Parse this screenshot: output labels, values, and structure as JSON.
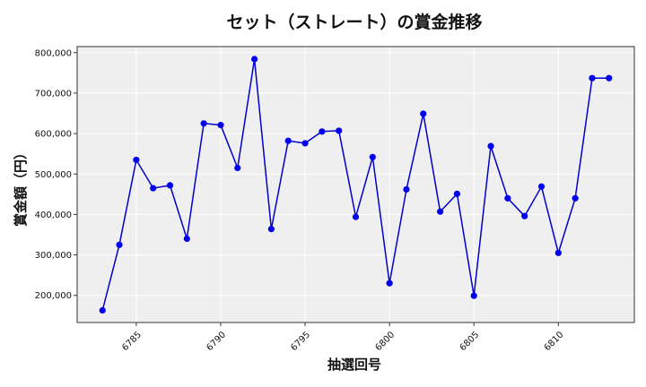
{
  "chart_data": {
    "type": "line",
    "title": "セット（ストレート）の賞金推移",
    "xlabel": "抽選回号",
    "ylabel": "賞金額（円）",
    "x": [
      6783,
      6784,
      6785,
      6786,
      6787,
      6788,
      6789,
      6790,
      6791,
      6792,
      6793,
      6794,
      6795,
      6796,
      6797,
      6798,
      6799,
      6800,
      6801,
      6802,
      6803,
      6804,
      6805,
      6806,
      6807,
      6808,
      6809,
      6810,
      6811,
      6812,
      6813
    ],
    "series": [
      {
        "values": [
          163000,
          325000,
          535000,
          465000,
          472000,
          340000,
          625000,
          621000,
          515000,
          784000,
          364000,
          582000,
          576000,
          605000,
          607000,
          394000,
          542000,
          230000,
          462000,
          649000,
          407000,
          451000,
          199000,
          569000,
          440000,
          396000,
          469000,
          305000,
          440000,
          737000,
          737000
        ]
      }
    ],
    "xlim": [
      6781.5,
      6814.5
    ],
    "ylim": [
      133000,
      815000
    ],
    "xticks": [
      6785,
      6790,
      6795,
      6800,
      6805,
      6810
    ],
    "yticks": [
      200000,
      300000,
      400000,
      500000,
      600000,
      700000,
      800000
    ],
    "grid": true,
    "colors": {
      "line": "#0000cc",
      "marker": "#0000ee",
      "plot_background": "#efefef",
      "grid": "#ffffff"
    }
  }
}
